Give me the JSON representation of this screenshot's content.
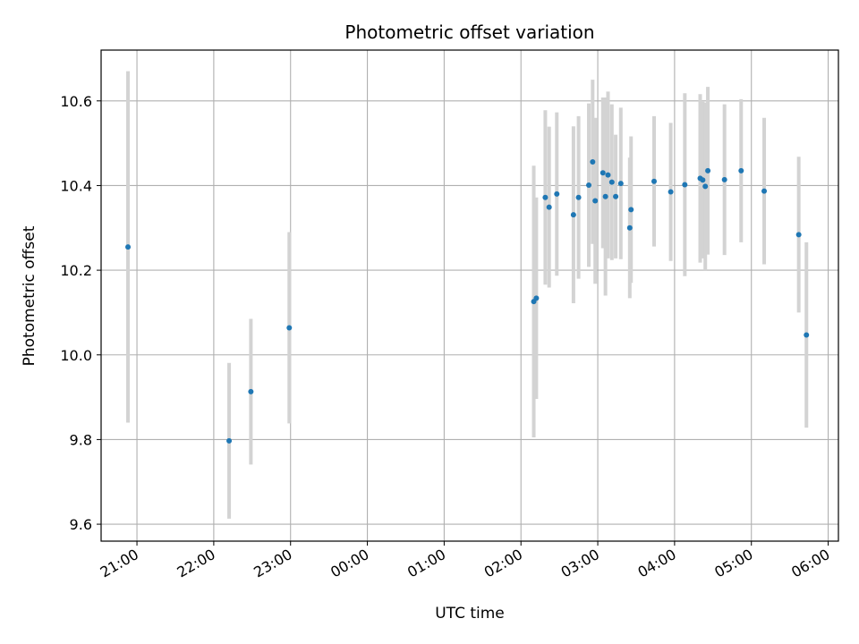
{
  "chart_data": {
    "type": "scatter",
    "title": "Photometric offset variation",
    "xlabel": "UTC time",
    "ylabel": "Photometric offset",
    "x_unit": "time of day (UTC)",
    "xlim": [
      "20:32",
      "06:08"
    ],
    "ylim": [
      9.56,
      10.72
    ],
    "x_ticks": [
      "21:00",
      "22:00",
      "23:00",
      "00:00",
      "01:00",
      "02:00",
      "03:00",
      "04:00",
      "05:00",
      "06:00"
    ],
    "y_ticks": [
      9.6,
      9.8,
      10.0,
      10.2,
      10.4,
      10.6
    ],
    "grid": true,
    "marker_color": "#1f77b4",
    "errorbar_color": "#d3d3d3",
    "points": [
      {
        "x": "20:53",
        "y": 10.255,
        "lo": 9.84,
        "hi": 10.67
      },
      {
        "x": "22:12",
        "y": 9.797,
        "lo": 9.613,
        "hi": 9.981
      },
      {
        "x": "22:29",
        "y": 9.913,
        "lo": 9.741,
        "hi": 10.085
      },
      {
        "x": "22:59",
        "y": 10.064,
        "lo": 9.838,
        "hi": 10.29
      },
      {
        "x": "02:10",
        "y": 10.126,
        "lo": 9.805,
        "hi": 10.447
      },
      {
        "x": "02:12",
        "y": 10.134,
        "lo": 9.896,
        "hi": 10.372
      },
      {
        "x": "02:19",
        "y": 10.372,
        "lo": 10.166,
        "hi": 10.578
      },
      {
        "x": "02:22",
        "y": 10.349,
        "lo": 10.159,
        "hi": 10.539
      },
      {
        "x": "02:28",
        "y": 10.38,
        "lo": 10.187,
        "hi": 10.573
      },
      {
        "x": "02:41",
        "y": 10.331,
        "lo": 10.122,
        "hi": 10.54
      },
      {
        "x": "02:45",
        "y": 10.372,
        "lo": 10.18,
        "hi": 10.564
      },
      {
        "x": "02:53",
        "y": 10.401,
        "lo": 10.208,
        "hi": 10.594
      },
      {
        "x": "02:56",
        "y": 10.456,
        "lo": 10.262,
        "hi": 10.65
      },
      {
        "x": "02:58",
        "y": 10.364,
        "lo": 10.168,
        "hi": 10.56
      },
      {
        "x": "03:04",
        "y": 10.43,
        "lo": 10.252,
        "hi": 10.608
      },
      {
        "x": "03:06",
        "y": 10.374,
        "lo": 10.14,
        "hi": 10.608
      },
      {
        "x": "03:08",
        "y": 10.425,
        "lo": 10.228,
        "hi": 10.622
      },
      {
        "x": "03:11",
        "y": 10.408,
        "lo": 10.224,
        "hi": 10.592
      },
      {
        "x": "03:14",
        "y": 10.374,
        "lo": 10.228,
        "hi": 10.52
      },
      {
        "x": "03:18",
        "y": 10.405,
        "lo": 10.226,
        "hi": 10.584
      },
      {
        "x": "03:25",
        "y": 10.3,
        "lo": 10.134,
        "hi": 10.466
      },
      {
        "x": "03:26",
        "y": 10.343,
        "lo": 10.17,
        "hi": 10.516
      },
      {
        "x": "03:44",
        "y": 10.41,
        "lo": 10.256,
        "hi": 10.564
      },
      {
        "x": "03:57",
        "y": 10.385,
        "lo": 10.222,
        "hi": 10.548
      },
      {
        "x": "04:08",
        "y": 10.402,
        "lo": 10.186,
        "hi": 10.618
      },
      {
        "x": "04:20",
        "y": 10.417,
        "lo": 10.218,
        "hi": 10.616
      },
      {
        "x": "04:22",
        "y": 10.413,
        "lo": 10.228,
        "hi": 10.598
      },
      {
        "x": "04:24",
        "y": 10.398,
        "lo": 10.2,
        "hi": 10.596
      },
      {
        "x": "04:26",
        "y": 10.435,
        "lo": 10.237,
        "hi": 10.633
      },
      {
        "x": "04:39",
        "y": 10.414,
        "lo": 10.236,
        "hi": 10.592
      },
      {
        "x": "04:52",
        "y": 10.435,
        "lo": 10.266,
        "hi": 10.604
      },
      {
        "x": "05:10",
        "y": 10.387,
        "lo": 10.214,
        "hi": 10.56
      },
      {
        "x": "05:37",
        "y": 10.284,
        "lo": 10.1,
        "hi": 10.468
      },
      {
        "x": "05:43",
        "y": 10.047,
        "lo": 9.828,
        "hi": 10.266
      }
    ]
  }
}
